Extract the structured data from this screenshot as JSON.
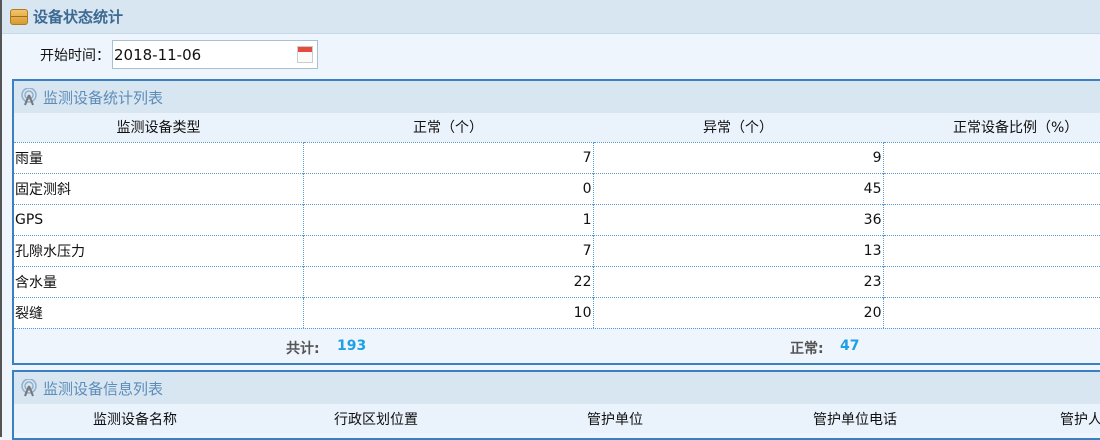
{
  "header": {
    "title": "设备状态统计",
    "icon": "box-icon"
  },
  "filter": {
    "label": "开始时间：",
    "date": "2018-11-06",
    "icon": "calendar-icon"
  },
  "stats_panel": {
    "title": "监测设备统计列表",
    "icon": "antenna-icon",
    "columns": [
      "监测设备类型",
      "正常（个）",
      "异常（个）",
      "正常设备比例（%）"
    ],
    "rows": [
      {
        "type": "雨量",
        "normal": "7",
        "abnormal": "9",
        "ratio": ""
      },
      {
        "type": "固定测斜",
        "normal": "0",
        "abnormal": "45",
        "ratio": ""
      },
      {
        "type": "GPS",
        "normal": "1",
        "abnormal": "36",
        "ratio": ""
      },
      {
        "type": "孔隙水压力",
        "normal": "7",
        "abnormal": "13",
        "ratio": ""
      },
      {
        "type": "含水量",
        "normal": "22",
        "abnormal": "23",
        "ratio": ""
      },
      {
        "type": "裂缝",
        "normal": "10",
        "abnormal": "20",
        "ratio": ""
      }
    ],
    "summary": {
      "total_label": "共计:",
      "total": "193",
      "normal_label": "正常:",
      "normal": "47"
    }
  },
  "info_panel": {
    "title": "监测设备信息列表",
    "icon": "antenna-icon",
    "columns": [
      "监测设备名称",
      "行政区划位置",
      "管护单位",
      "管护单位电话",
      "管护人"
    ]
  },
  "colors": {
    "accent": "#3b80c0",
    "value": "#1ea0e6",
    "header_bg": "#d8e6f2"
  }
}
